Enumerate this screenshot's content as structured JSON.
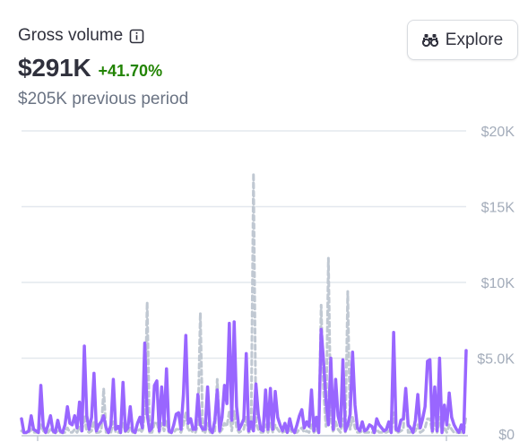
{
  "header": {
    "title": "Gross volume",
    "value": "$291K",
    "change": "+41.70%",
    "previous": "$205K previous period",
    "info_icon": "info-icon"
  },
  "toolbar": {
    "explore_label": "Explore",
    "explore_icon": "binoculars-icon"
  },
  "colors": {
    "current_series": "#9966ff",
    "previous_series": "#c0c8d2",
    "change_positive": "#228403",
    "gridline": "#e3e8ee",
    "tick_label": "#a3acba"
  },
  "chart_data": {
    "type": "line",
    "title": "",
    "xlabel": "",
    "ylabel": "",
    "ylim": [
      0,
      20000
    ],
    "yticks": [
      "$20K",
      "$15K",
      "$10K",
      "$5.0K",
      "$0"
    ],
    "ytick_values": [
      20000,
      15000,
      10000,
      5000,
      0
    ],
    "grid": true,
    "legend": "none",
    "series": [
      {
        "style": "solid",
        "color": "#9966ff",
        "values": [
          1000,
          0,
          0,
          200,
          1200,
          300,
          200,
          0,
          3200,
          500,
          0,
          600,
          1200,
          200,
          0,
          900,
          200,
          0,
          600,
          1800,
          700,
          600,
          1200,
          400,
          2100,
          200,
          5800,
          1200,
          300,
          1100,
          4000,
          200,
          600,
          800,
          1200,
          400,
          0,
          600,
          3600,
          300,
          500,
          0,
          3400,
          200,
          400,
          1800,
          200,
          0,
          700,
          1100,
          400,
          6000,
          1300,
          200,
          400,
          3200,
          3500,
          200,
          3100,
          600,
          4300,
          200,
          0,
          600,
          1300,
          1400,
          300,
          2600,
          6500,
          700,
          1000,
          300,
          300,
          2600,
          600,
          300,
          300,
          3100,
          300,
          0,
          900,
          2900,
          200,
          1100,
          3200,
          2000,
          7300,
          900,
          7400,
          1800,
          300,
          600,
          1000,
          5300,
          200,
          800,
          200,
          3300,
          1300,
          300,
          200,
          2900,
          300,
          3000,
          300,
          2800,
          1100,
          600,
          200,
          700,
          100,
          1000,
          300,
          0,
          600,
          1200,
          1600,
          400,
          800,
          500,
          2900,
          200,
          1100,
          0,
          6900,
          4800,
          2200,
          600,
          5000,
          300,
          3600,
          1200,
          500,
          4900,
          200,
          600,
          1300,
          5400,
          1900,
          400,
          200,
          800,
          200,
          300,
          600,
          500,
          0,
          1000,
          600,
          400,
          200,
          300,
          800,
          0,
          6700,
          300,
          200,
          900,
          1000,
          3000,
          600,
          400,
          0,
          900,
          2600,
          400,
          1000,
          1800,
          4800,
          4900,
          200,
          3100,
          200,
          5000,
          0,
          1900,
          600,
          2700,
          1100,
          600,
          300,
          100,
          600,
          0,
          5500
        ]
      },
      {
        "style": "dashed",
        "color": "#c0c8d2",
        "values": [
          200,
          100,
          0,
          100,
          300,
          100,
          100,
          0,
          600,
          200,
          0,
          100,
          300,
          100,
          0,
          200,
          100,
          0,
          100,
          400,
          100,
          100,
          300,
          100,
          500,
          0,
          1200,
          200,
          100,
          200,
          800,
          0,
          100,
          200,
          3000,
          100,
          0,
          100,
          800,
          100,
          100,
          0,
          700,
          100,
          100,
          400,
          100,
          0,
          200,
          300,
          100,
          1400,
          8700,
          100,
          100,
          700,
          800,
          100,
          700,
          200,
          900,
          100,
          0,
          100,
          300,
          300,
          100,
          600,
          1400,
          200,
          300,
          100,
          100,
          600,
          8000,
          100,
          100,
          700,
          100,
          0,
          200,
          3600,
          100,
          300,
          700,
          500,
          1500,
          200,
          1500,
          400,
          100,
          200,
          300,
          1100,
          100,
          200,
          17200,
          700,
          300,
          100,
          100,
          600,
          100,
          700,
          100,
          600,
          300,
          100,
          100,
          200,
          100,
          300,
          100,
          0,
          100,
          300,
          400,
          100,
          200,
          100,
          600,
          100,
          300,
          0,
          8500,
          2800,
          500,
          11600,
          1000,
          100,
          800,
          300,
          100,
          1000,
          100,
          9400,
          300,
          1100,
          400,
          100,
          100,
          200,
          100,
          100,
          100,
          100,
          0,
          300,
          100,
          100,
          100,
          100,
          200,
          0,
          1400,
          100,
          100,
          200,
          300,
          3000,
          100,
          100,
          0,
          200,
          600,
          100,
          200,
          400,
          1000,
          1000,
          100,
          700,
          100,
          1100,
          0,
          400,
          100,
          600,
          300,
          100,
          100,
          0,
          100,
          0,
          1200
        ]
      }
    ]
  }
}
